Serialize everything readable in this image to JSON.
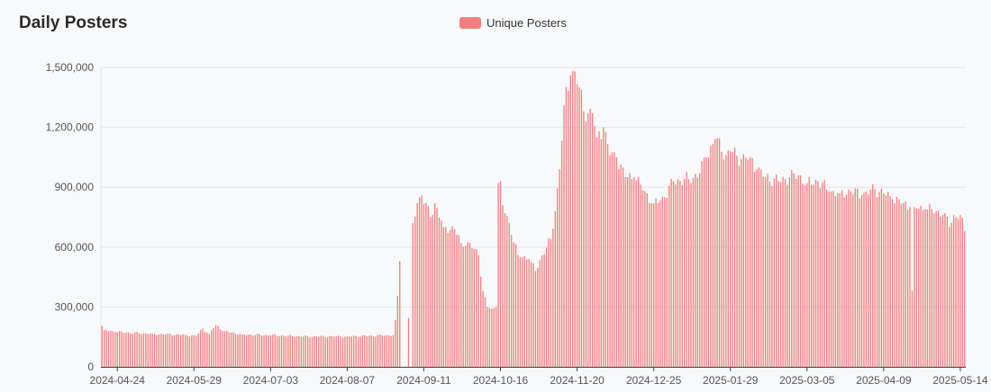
{
  "chart_data": {
    "type": "bar",
    "title": "Daily Posters",
    "xlabel": "",
    "ylabel": "",
    "ylim": [
      0,
      1500000
    ],
    "yticks": [
      0,
      300000,
      600000,
      900000,
      1200000,
      1500000
    ],
    "ytick_labels": [
      "0",
      "300,000",
      "600,000",
      "900,000",
      "1,200,000",
      "1,500,000"
    ],
    "xtick_labels": [
      "2024-04-24",
      "2024-05-29",
      "2024-07-03",
      "2024-08-07",
      "2024-09-11",
      "2024-10-16",
      "2024-11-20",
      "2024-12-25",
      "2025-01-29",
      "2025-03-05",
      "2025-04-09",
      "2025-05-14"
    ],
    "start_date": "2024-04-17",
    "grid": true,
    "legend_position": "top-center",
    "series": [
      {
        "name": "Unique Posters",
        "color": "#f08080",
        "anchors": [
          [
            "2024-04-17",
            205000
          ],
          [
            "2024-04-18",
            185000
          ],
          [
            "2024-04-23",
            175000
          ],
          [
            "2024-05-10",
            165000
          ],
          [
            "2024-05-25",
            160000
          ],
          [
            "2024-05-30",
            155000
          ],
          [
            "2024-06-02",
            192000
          ],
          [
            "2024-06-05",
            165000
          ],
          [
            "2024-06-08",
            210000
          ],
          [
            "2024-06-12",
            178000
          ],
          [
            "2024-06-20",
            162000
          ],
          [
            "2024-07-03",
            158000
          ],
          [
            "2024-07-20",
            152000
          ],
          [
            "2024-08-07",
            152000
          ],
          [
            "2024-08-25",
            158000
          ],
          [
            "2024-08-28",
            160000
          ],
          [
            "2024-08-29",
            235000
          ],
          [
            "2024-08-30",
            355000
          ],
          [
            "2024-08-31",
            530000
          ],
          [
            "2024-09-01",
            0
          ],
          [
            "2024-09-03",
            0
          ],
          [
            "2024-09-04",
            245000
          ],
          [
            "2024-09-05",
            0
          ],
          [
            "2024-09-06",
            720000
          ],
          [
            "2024-09-08",
            820000
          ],
          [
            "2024-09-10",
            860000
          ],
          [
            "2024-09-14",
            750000
          ],
          [
            "2024-09-16",
            820000
          ],
          [
            "2024-09-20",
            700000
          ],
          [
            "2024-09-25",
            690000
          ],
          [
            "2024-09-28",
            620000
          ],
          [
            "2024-10-01",
            625000
          ],
          [
            "2024-10-04",
            590000
          ],
          [
            "2024-10-06",
            560000
          ],
          [
            "2024-10-08",
            380000
          ],
          [
            "2024-10-10",
            300000
          ],
          [
            "2024-10-12",
            290000
          ],
          [
            "2024-10-14",
            300000
          ],
          [
            "2024-10-15",
            920000
          ],
          [
            "2024-10-16",
            930000
          ],
          [
            "2024-10-17",
            810000
          ],
          [
            "2024-10-20",
            720000
          ],
          [
            "2024-10-24",
            560000
          ],
          [
            "2024-10-29",
            540000
          ],
          [
            "2024-11-01",
            480000
          ],
          [
            "2024-11-04",
            560000
          ],
          [
            "2024-11-08",
            640000
          ],
          [
            "2024-11-10",
            780000
          ],
          [
            "2024-11-12",
            990000
          ],
          [
            "2024-11-14",
            1310000
          ],
          [
            "2024-11-17",
            1460000
          ],
          [
            "2024-11-19",
            1480000
          ],
          [
            "2024-11-21",
            1400000
          ],
          [
            "2024-11-23",
            1280000
          ],
          [
            "2024-11-27",
            1270000
          ],
          [
            "2024-11-29",
            1150000
          ],
          [
            "2024-12-02",
            1200000
          ],
          [
            "2024-12-05",
            1060000
          ],
          [
            "2024-12-08",
            1050000
          ],
          [
            "2024-12-12",
            950000
          ],
          [
            "2024-12-16",
            950000
          ],
          [
            "2024-12-21",
            880000
          ],
          [
            "2024-12-25",
            820000
          ],
          [
            "2024-12-30",
            850000
          ],
          [
            "2025-01-03",
            930000
          ],
          [
            "2025-01-10",
            940000
          ],
          [
            "2025-01-15",
            970000
          ],
          [
            "2025-01-18",
            1050000
          ],
          [
            "2025-01-22",
            1140000
          ],
          [
            "2025-01-27",
            1060000
          ],
          [
            "2025-01-29",
            1080000
          ],
          [
            "2025-02-03",
            1040000
          ],
          [
            "2025-02-07",
            1050000
          ],
          [
            "2025-02-10",
            990000
          ],
          [
            "2025-02-14",
            950000
          ],
          [
            "2025-02-20",
            930000
          ],
          [
            "2025-02-25",
            950000
          ],
          [
            "2025-03-01",
            960000
          ],
          [
            "2025-03-05",
            920000
          ],
          [
            "2025-03-10",
            930000
          ],
          [
            "2025-03-15",
            880000
          ],
          [
            "2025-03-20",
            870000
          ],
          [
            "2025-03-25",
            880000
          ],
          [
            "2025-03-30",
            860000
          ],
          [
            "2025-04-05",
            890000
          ],
          [
            "2025-04-09",
            870000
          ],
          [
            "2025-04-13",
            840000
          ],
          [
            "2025-04-18",
            820000
          ],
          [
            "2025-04-21",
            800000
          ],
          [
            "2025-04-22",
            380000
          ],
          [
            "2025-04-23",
            800000
          ],
          [
            "2025-04-28",
            790000
          ],
          [
            "2025-05-03",
            780000
          ],
          [
            "2025-05-07",
            770000
          ],
          [
            "2025-05-09",
            700000
          ],
          [
            "2025-05-11",
            760000
          ],
          [
            "2025-05-14",
            760000
          ],
          [
            "2025-05-16",
            680000
          ]
        ]
      }
    ]
  }
}
